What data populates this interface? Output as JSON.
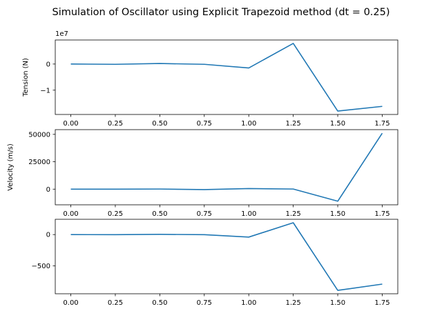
{
  "figure": {
    "title": "Simulation of Oscillator using Explicit Trapezoid method (dt = 0.25)",
    "line_color": "#1f77b4"
  },
  "chart_data": [
    {
      "type": "line",
      "title": "",
      "xlabel": "",
      "ylabel": "Tension (N)",
      "offset_label": "1e7",
      "x": [
        0.0,
        0.25,
        0.5,
        0.75,
        1.0,
        1.25,
        1.5,
        1.75
      ],
      "series": [
        {
          "values": [
            0.0,
            -0.01,
            0.02,
            -0.01,
            -0.15,
            0.79,
            -1.8,
            -1.62
          ]
        }
      ],
      "xlim": [
        -0.0875,
        1.8375
      ],
      "ylim": [
        -1.93,
        0.92
      ],
      "xticks": [
        0.0,
        0.25,
        0.5,
        0.75,
        1.0,
        1.25,
        1.5,
        1.75
      ],
      "xtick_labels": [
        "0.00",
        "0.25",
        "0.50",
        "0.75",
        "1.00",
        "1.25",
        "1.50",
        "1.75"
      ],
      "yticks": [
        0,
        -1
      ],
      "ytick_labels": [
        "0",
        "−1"
      ],
      "grid": false
    },
    {
      "type": "line",
      "title": "",
      "xlabel": "",
      "ylabel": "Velocity (m/s)",
      "x": [
        0.0,
        0.25,
        0.5,
        0.75,
        1.0,
        1.25,
        1.5,
        1.75
      ],
      "series": [
        {
          "values": [
            0,
            0,
            100,
            -400,
            500,
            100,
            -11000,
            51000
          ]
        }
      ],
      "xlim": [
        -0.0875,
        1.8375
      ],
      "ylim": [
        -14300,
        54300
      ],
      "xticks": [
        0.0,
        0.25,
        0.5,
        0.75,
        1.0,
        1.25,
        1.5,
        1.75
      ],
      "xtick_labels": [
        "0.00",
        "0.25",
        "0.50",
        "0.75",
        "1.00",
        "1.25",
        "1.50",
        "1.75"
      ],
      "yticks": [
        0,
        25000,
        50000
      ],
      "ytick_labels": [
        "0",
        "25000",
        "50000"
      ],
      "grid": false
    },
    {
      "type": "line",
      "title": "",
      "xlabel": "",
      "ylabel": "",
      "x": [
        0.0,
        0.25,
        0.5,
        0.75,
        1.0,
        1.25,
        1.5,
        1.75
      ],
      "series": [
        {
          "values": [
            0,
            -2,
            4,
            -2,
            -40,
            189,
            -890,
            -790
          ]
        }
      ],
      "xlim": [
        -0.0875,
        1.8375
      ],
      "ylim": [
        -944,
        244
      ],
      "xticks": [
        0.0,
        0.25,
        0.5,
        0.75,
        1.0,
        1.25,
        1.5,
        1.75
      ],
      "xtick_labels": [
        "0.00",
        "0.25",
        "0.50",
        "0.75",
        "1.00",
        "1.25",
        "1.50",
        "1.75"
      ],
      "yticks": [
        0,
        -500
      ],
      "ytick_labels": [
        "0",
        "−500"
      ],
      "grid": false
    }
  ]
}
